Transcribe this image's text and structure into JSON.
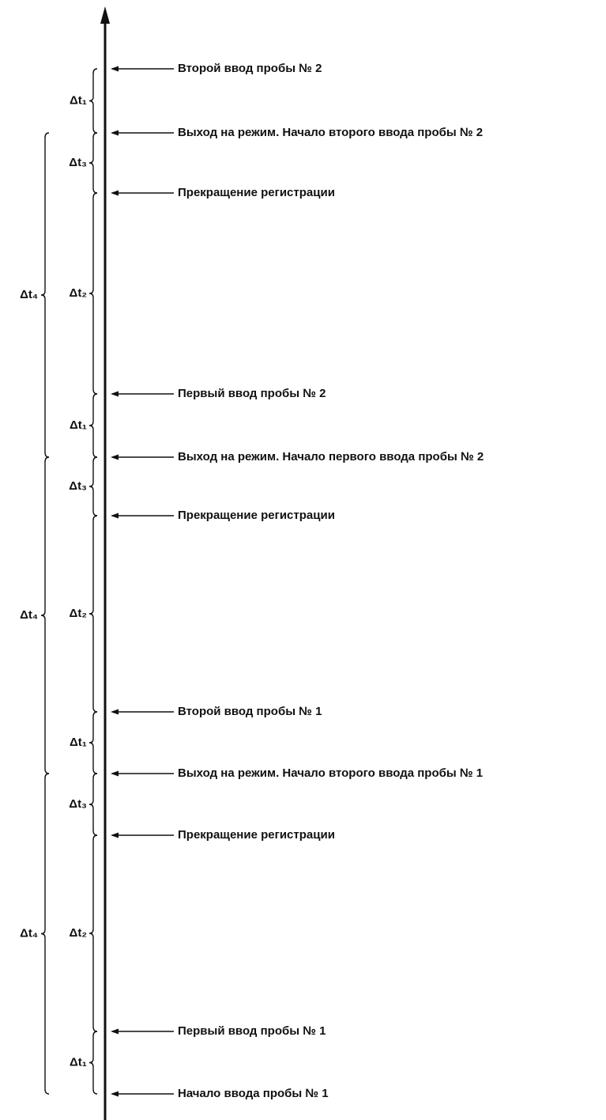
{
  "events": [
    {
      "label": "Второй ввод пробы № 2"
    },
    {
      "label": "Выход на режим. Начало второго ввода пробы № 2"
    },
    {
      "label": "Прекращение регистрации"
    },
    {
      "label": "Первый ввод пробы № 2"
    },
    {
      "label": "Выход на режим. Начало первого ввода пробы № 2"
    },
    {
      "label": "Прекращение регистрации"
    },
    {
      "label": "Второй ввод пробы № 1"
    },
    {
      "label": "Выход на режим. Начало второго ввода пробы № 1"
    },
    {
      "label": "Прекращение регистрации"
    },
    {
      "label": "Первый ввод пробы № 1"
    },
    {
      "label": "Начало ввода пробы № 1"
    }
  ],
  "intervals": [
    {
      "label": "Δt₁"
    },
    {
      "label": "Δt₃"
    },
    {
      "label": "Δt₂"
    },
    {
      "label": "Δt₁"
    },
    {
      "label": "Δt₃"
    },
    {
      "label": "Δt₂"
    },
    {
      "label": "Δt₁"
    },
    {
      "label": "Δt₃"
    },
    {
      "label": "Δt₂"
    },
    {
      "label": "Δt₁"
    }
  ],
  "cycles": [
    {
      "label": "Δt₄"
    },
    {
      "label": "Δt₄"
    },
    {
      "label": "Δt₄"
    }
  ]
}
